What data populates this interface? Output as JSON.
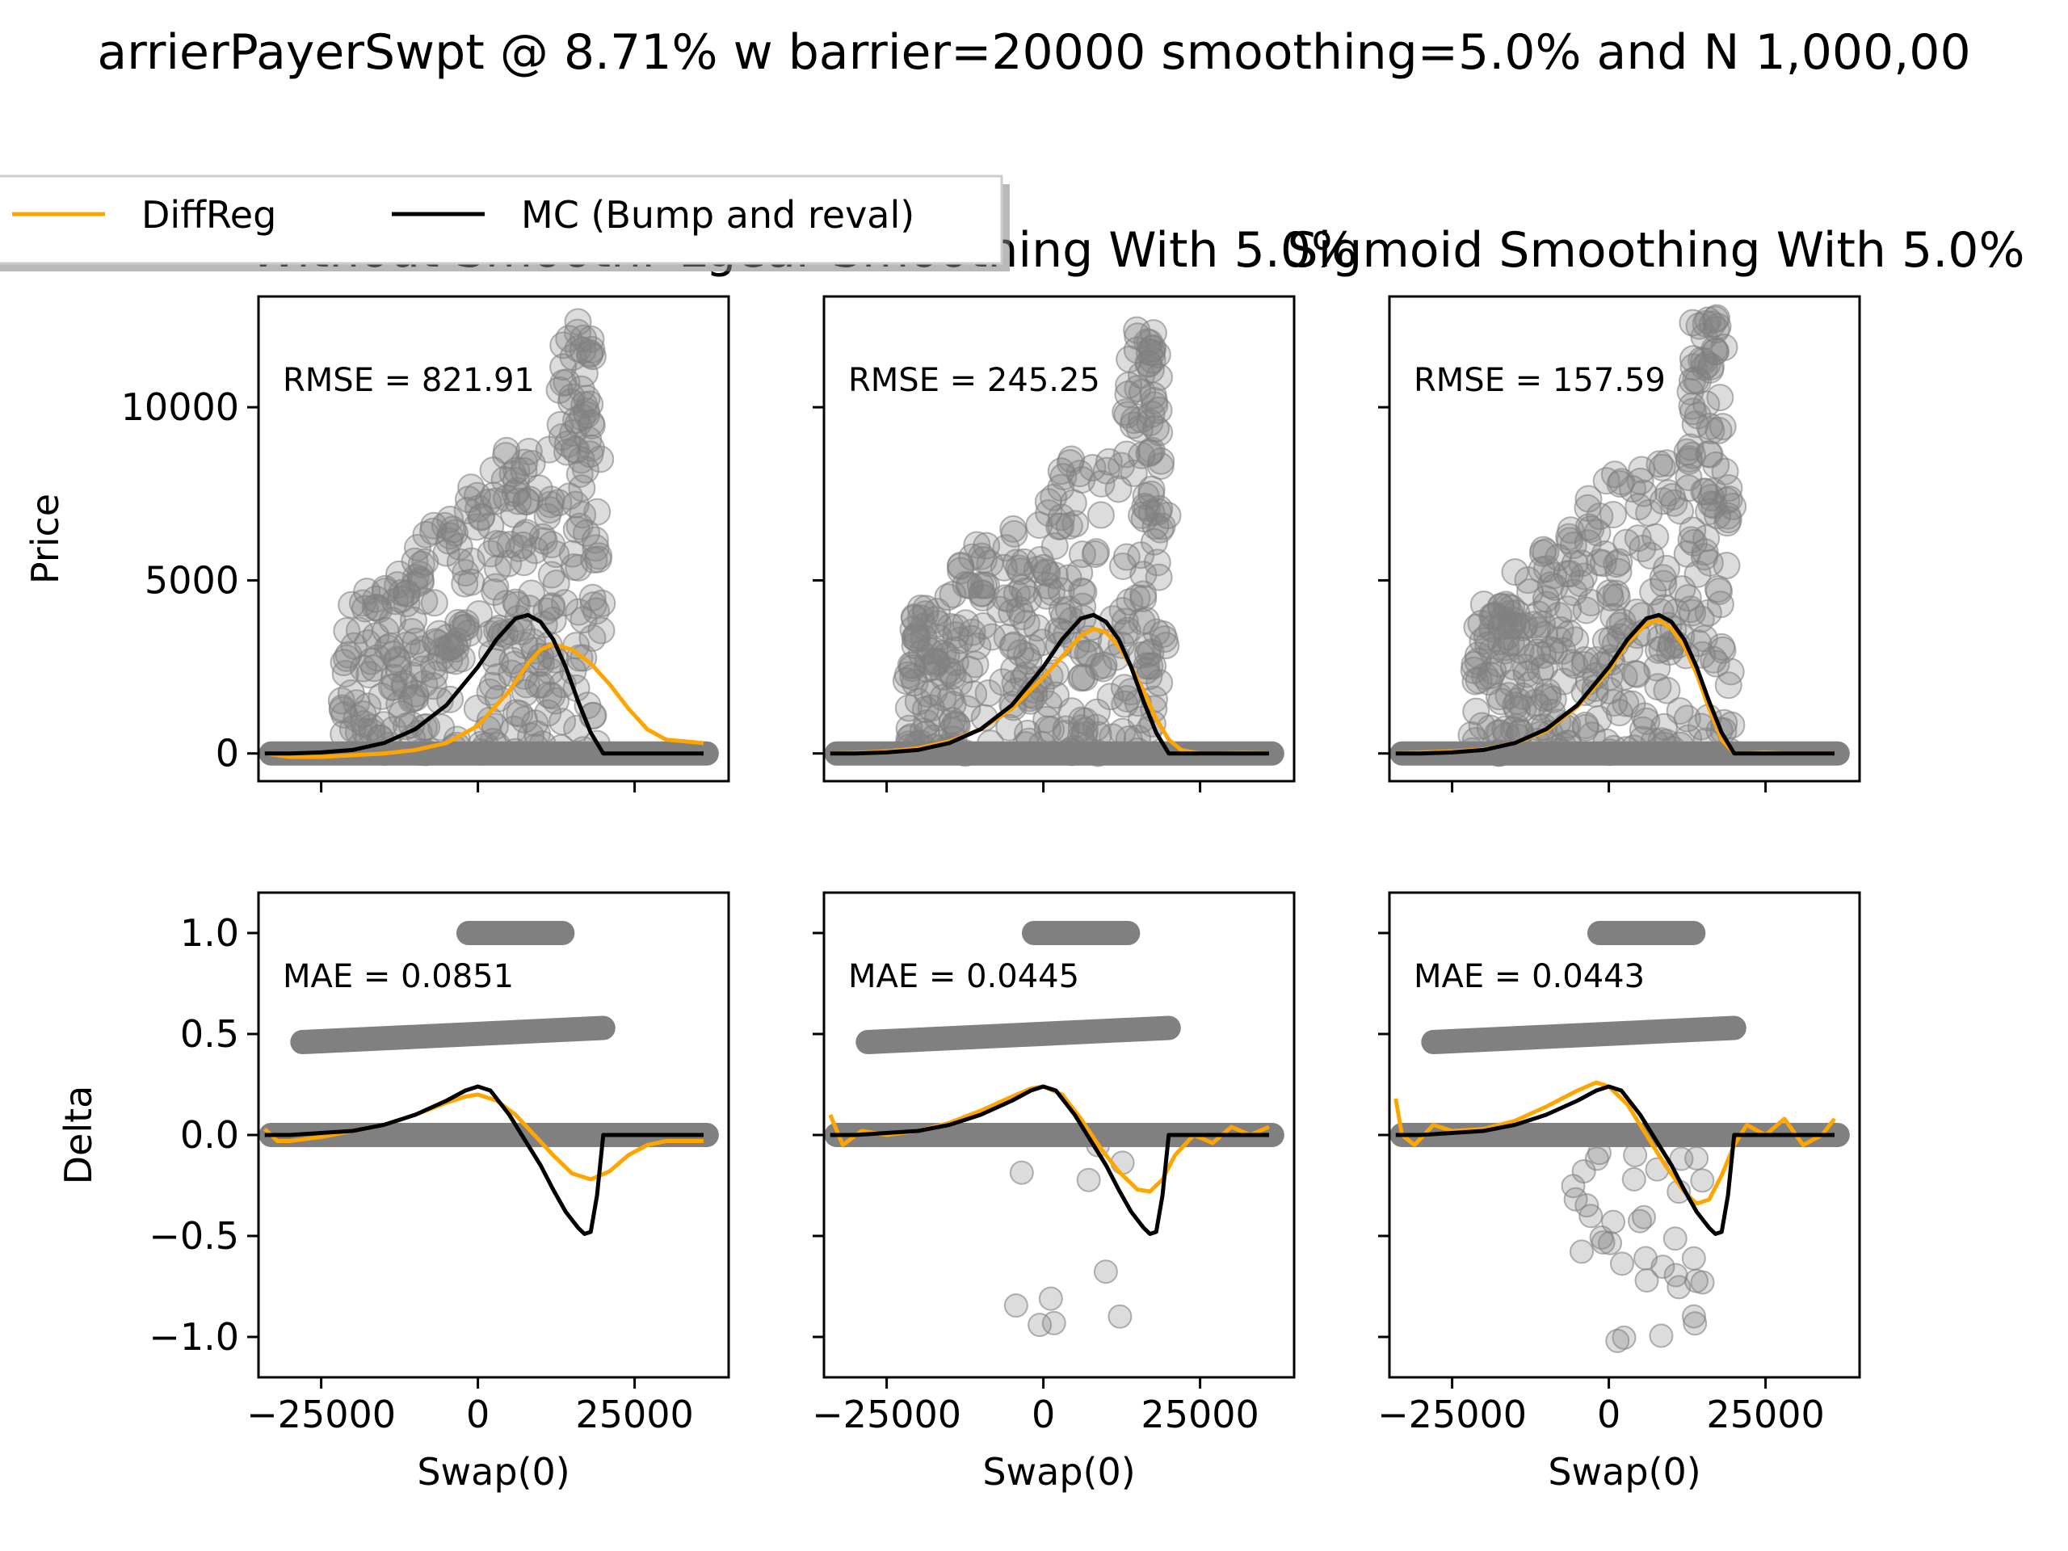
{
  "figure": {
    "title": "arrierPayerSwpt @ 8.71% w barrier=20000 smoothing=5.0% and N 1,000,00",
    "colors": {
      "diffreg": "#FFA500",
      "mc": "#000000",
      "samples": "#808080"
    }
  },
  "legend": {
    "items": [
      "DiffReg",
      "MC (Bump and reval)"
    ],
    "placement": "top-left"
  },
  "chart_data": [
    {
      "type": "scatter",
      "title": "Without Smoothi",
      "xlabel": "",
      "ylabel": "Price",
      "xlim": [
        -35000,
        40000
      ],
      "ylim": [
        -800,
        13200
      ],
      "xticks": [
        -25000,
        0,
        25000
      ],
      "yticks": [
        0,
        5000,
        10000
      ],
      "xtick_labels": [
        "",
        "",
        ""
      ],
      "ytick_labels": [
        "0",
        "5000",
        "10000"
      ],
      "metric": "RMSE = 821.91",
      "series": [
        {
          "name": "DiffReg",
          "x": [
            -34000,
            -30000,
            -25000,
            -20000,
            -15000,
            -10000,
            -5000,
            0,
            5000,
            8000,
            10000,
            12000,
            15000,
            18000,
            21000,
            24000,
            27000,
            30000,
            33000,
            36000
          ],
          "values": [
            0,
            -100,
            -100,
            -50,
            0,
            100,
            300,
            800,
            1800,
            2600,
            3000,
            3150,
            3000,
            2600,
            2000,
            1300,
            700,
            400,
            350,
            300
          ]
        },
        {
          "name": "MC (Bump and reval)",
          "x": [
            -34000,
            -30000,
            -25000,
            -20000,
            -15000,
            -10000,
            -5000,
            0,
            3000,
            6000,
            8000,
            10000,
            12000,
            14000,
            16000,
            18000,
            20000,
            22000,
            28000,
            36000
          ],
          "values": [
            0,
            0,
            30,
            100,
            300,
            700,
            1400,
            2500,
            3300,
            3900,
            4000,
            3800,
            3300,
            2500,
            1500,
            600,
            0,
            0,
            0,
            0
          ]
        }
      ]
    },
    {
      "type": "scatter",
      "title": "Lgear Smoothing With 5.0%",
      "xlabel": "",
      "ylabel": "",
      "xlim": [
        -35000,
        40000
      ],
      "ylim": [
        -800,
        13200
      ],
      "xticks": [
        -25000,
        0,
        25000
      ],
      "yticks": [
        0,
        5000,
        10000
      ],
      "xtick_labels": [
        "",
        "",
        ""
      ],
      "ytick_labels": [
        "",
        "",
        ""
      ],
      "metric": "RMSE = 245.25",
      "series": [
        {
          "name": "DiffReg",
          "x": [
            -34000,
            -30000,
            -25000,
            -20000,
            -15000,
            -10000,
            -5000,
            0,
            3000,
            6000,
            8000,
            10000,
            12000,
            14000,
            16000,
            18000,
            20000,
            22000,
            25000,
            28000,
            32000,
            36000
          ],
          "values": [
            0,
            20,
            60,
            150,
            350,
            700,
            1300,
            2200,
            2800,
            3400,
            3600,
            3500,
            3100,
            2500,
            1800,
            1000,
            400,
            100,
            0,
            0,
            20,
            0
          ]
        },
        {
          "name": "MC (Bump and reval)",
          "x": [
            -34000,
            -30000,
            -25000,
            -20000,
            -15000,
            -10000,
            -5000,
            0,
            3000,
            6000,
            8000,
            10000,
            12000,
            14000,
            16000,
            18000,
            20000,
            22000,
            28000,
            36000
          ],
          "values": [
            0,
            0,
            30,
            100,
            300,
            700,
            1400,
            2500,
            3300,
            3900,
            4000,
            3800,
            3300,
            2500,
            1500,
            600,
            0,
            0,
            0,
            0
          ]
        }
      ]
    },
    {
      "type": "scatter",
      "title": "Sigmoid Smoothing With 5.0%",
      "xlabel": "",
      "ylabel": "",
      "xlim": [
        -35000,
        40000
      ],
      "ylim": [
        -800,
        13200
      ],
      "xticks": [
        -25000,
        0,
        25000
      ],
      "yticks": [
        0,
        5000,
        10000
      ],
      "xtick_labels": [
        "",
        "",
        ""
      ],
      "ytick_labels": [
        "",
        "",
        ""
      ],
      "metric": "RMSE = 157.59",
      "series": [
        {
          "name": "DiffReg",
          "x": [
            -34000,
            -30000,
            -25000,
            -20000,
            -15000,
            -10000,
            -5000,
            0,
            3000,
            6000,
            8000,
            10000,
            12000,
            14000,
            16000,
            18000,
            20000,
            22000,
            25000,
            28000,
            32000,
            36000
          ],
          "values": [
            0,
            30,
            60,
            120,
            300,
            650,
            1350,
            2400,
            3200,
            3750,
            3850,
            3600,
            3100,
            2300,
            1300,
            400,
            0,
            0,
            30,
            0,
            0,
            0
          ]
        },
        {
          "name": "MC (Bump and reval)",
          "x": [
            -34000,
            -30000,
            -25000,
            -20000,
            -15000,
            -10000,
            -5000,
            0,
            3000,
            6000,
            8000,
            10000,
            12000,
            14000,
            16000,
            18000,
            20000,
            22000,
            28000,
            36000
          ],
          "values": [
            0,
            0,
            30,
            100,
            300,
            700,
            1400,
            2500,
            3300,
            3900,
            4000,
            3800,
            3300,
            2500,
            1500,
            600,
            0,
            0,
            0,
            0
          ]
        }
      ]
    },
    {
      "type": "scatter",
      "title": "",
      "xlabel": "Swap(0)",
      "ylabel": "Delta",
      "xlim": [
        -35000,
        40000
      ],
      "ylim": [
        -1.2,
        1.2
      ],
      "xticks": [
        -25000,
        0,
        25000
      ],
      "yticks": [
        -1.0,
        -0.5,
        0.0,
        0.5,
        1.0
      ],
      "xtick_labels": [
        "−25000",
        "0",
        "25000"
      ],
      "ytick_labels": [
        "−1.0",
        "−0.5",
        "0.0",
        "0.5",
        "1.0"
      ],
      "metric": "MAE = 0.0851",
      "series": [
        {
          "name": "DiffReg",
          "x": [
            -34000,
            -32000,
            -30000,
            -25000,
            -20000,
            -15000,
            -10000,
            -5000,
            -2000,
            0,
            3000,
            6000,
            9000,
            12000,
            15000,
            18000,
            21000,
            24000,
            27000,
            30000,
            33000,
            36000
          ],
          "values": [
            0.03,
            -0.03,
            -0.03,
            -0.01,
            0.02,
            0.05,
            0.1,
            0.16,
            0.19,
            0.2,
            0.17,
            0.1,
            0.0,
            -0.1,
            -0.19,
            -0.22,
            -0.18,
            -0.1,
            -0.05,
            -0.03,
            -0.03,
            -0.03
          ]
        },
        {
          "name": "MC (Bump and reval)",
          "x": [
            -34000,
            -30000,
            -25000,
            -20000,
            -15000,
            -10000,
            -5000,
            -2000,
            0,
            2000,
            5000,
            8000,
            10000,
            12000,
            14000,
            16000,
            17000,
            18000,
            19000,
            20000,
            22000,
            28000,
            36000
          ],
          "values": [
            0,
            0,
            0.01,
            0.02,
            0.05,
            0.1,
            0.17,
            0.22,
            0.24,
            0.22,
            0.1,
            -0.05,
            -0.15,
            -0.27,
            -0.38,
            -0.46,
            -0.49,
            -0.48,
            -0.3,
            0,
            0,
            0,
            0
          ]
        }
      ]
    },
    {
      "type": "scatter",
      "title": "",
      "xlabel": "Swap(0)",
      "ylabel": "",
      "xlim": [
        -35000,
        40000
      ],
      "ylim": [
        -1.2,
        1.2
      ],
      "xticks": [
        -25000,
        0,
        25000
      ],
      "yticks": [
        -1.0,
        -0.5,
        0.0,
        0.5,
        1.0
      ],
      "xtick_labels": [
        "−25000",
        "0",
        "25000"
      ],
      "ytick_labels": [
        "",
        "",
        "",
        "",
        ""
      ],
      "metric": "MAE = 0.0445",
      "series": [
        {
          "name": "DiffReg",
          "x": [
            -34000,
            -32000,
            -29000,
            -25000,
            -20000,
            -15000,
            -10000,
            -5000,
            -2000,
            0,
            3000,
            6000,
            9000,
            12000,
            15000,
            17000,
            19000,
            21000,
            24000,
            27000,
            30000,
            33000,
            36000
          ],
          "values": [
            0.1,
            -0.05,
            0.02,
            0.0,
            0.02,
            0.06,
            0.12,
            0.19,
            0.23,
            0.24,
            0.2,
            0.08,
            -0.06,
            -0.18,
            -0.27,
            -0.28,
            -0.22,
            -0.1,
            0.0,
            -0.04,
            0.04,
            0.0,
            0.04
          ]
        },
        {
          "name": "MC (Bump and reval)",
          "x": [
            -34000,
            -30000,
            -25000,
            -20000,
            -15000,
            -10000,
            -5000,
            -2000,
            0,
            2000,
            5000,
            8000,
            10000,
            12000,
            14000,
            16000,
            17000,
            18000,
            19000,
            20000,
            22000,
            28000,
            36000
          ],
          "values": [
            0,
            0,
            0.01,
            0.02,
            0.05,
            0.1,
            0.17,
            0.22,
            0.24,
            0.22,
            0.1,
            -0.05,
            -0.15,
            -0.27,
            -0.38,
            -0.46,
            -0.49,
            -0.48,
            -0.3,
            0,
            0,
            0,
            0
          ]
        }
      ]
    },
    {
      "type": "scatter",
      "title": "",
      "xlabel": "Swap(0)",
      "ylabel": "",
      "xlim": [
        -35000,
        40000
      ],
      "ylim": [
        -1.2,
        1.2
      ],
      "xticks": [
        -25000,
        0,
        25000
      ],
      "yticks": [
        -1.0,
        -0.5,
        0.0,
        0.5,
        1.0
      ],
      "xtick_labels": [
        "−25000",
        "0",
        "25000"
      ],
      "ytick_labels": [
        "",
        "",
        "",
        "",
        ""
      ],
      "metric": "MAE = 0.0443",
      "series": [
        {
          "name": "DiffReg",
          "x": [
            -34000,
            -33000,
            -31000,
            -28000,
            -25000,
            -20000,
            -15000,
            -10000,
            -5000,
            -2000,
            0,
            3000,
            6000,
            9000,
            12000,
            14000,
            16000,
            18000,
            20000,
            22000,
            25000,
            28000,
            31000,
            34000,
            36000
          ],
          "values": [
            0.18,
            0.0,
            -0.05,
            0.05,
            0.02,
            0.03,
            0.07,
            0.14,
            0.22,
            0.26,
            0.24,
            0.15,
            0.0,
            -0.15,
            -0.28,
            -0.34,
            -0.32,
            -0.2,
            -0.05,
            0.05,
            0.0,
            0.08,
            -0.05,
            0.0,
            0.08
          ]
        },
        {
          "name": "MC (Bump and reval)",
          "x": [
            -34000,
            -30000,
            -25000,
            -20000,
            -15000,
            -10000,
            -5000,
            -2000,
            0,
            2000,
            5000,
            8000,
            10000,
            12000,
            14000,
            16000,
            17000,
            18000,
            19000,
            20000,
            22000,
            28000,
            36000
          ],
          "values": [
            0,
            0,
            0.01,
            0.02,
            0.05,
            0.1,
            0.17,
            0.22,
            0.24,
            0.22,
            0.1,
            -0.05,
            -0.15,
            -0.27,
            -0.38,
            -0.46,
            -0.49,
            -0.48,
            -0.3,
            0,
            0,
            0,
            0
          ]
        }
      ]
    }
  ]
}
